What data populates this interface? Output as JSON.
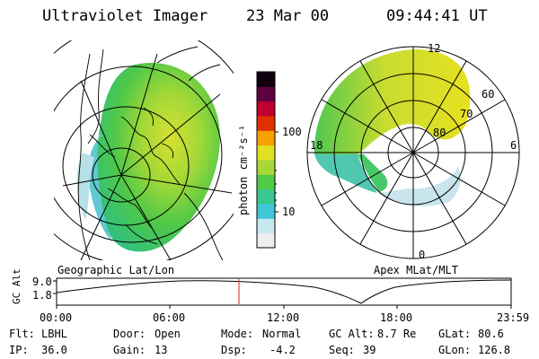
{
  "header": {
    "instrument": "Ultraviolet Imager",
    "date": "23 Mar 00",
    "time": "09:44:41 UT"
  },
  "colorbar": {
    "unit_text": "photon cm⁻²s⁻¹",
    "tick_labels": [
      "100",
      "10"
    ],
    "colors": [
      "#eeeeee",
      "#c8e8f0",
      "#40c8d8",
      "#38c890",
      "#50c848",
      "#a8d838",
      "#e0e020",
      "#f8a000",
      "#e03000",
      "#c00030",
      "#600040",
      "#100010"
    ]
  },
  "panels": {
    "geographic": {
      "label": "Geographic Lat/Lon"
    },
    "apex": {
      "label": "Apex MLat/MLT",
      "mlt_labels": [
        "12",
        "18",
        "6",
        "0"
      ],
      "mlat_labels": [
        "60",
        "70",
        "80"
      ]
    }
  },
  "timeline": {
    "ylabel": "GC Alt",
    "ytick_labels": [
      "9.0",
      "1.8"
    ],
    "xtick_labels": [
      "00:00",
      "06:00",
      "12:00",
      "18:00",
      "23:59"
    ]
  },
  "status": {
    "filter": {
      "label": "Flt:",
      "value": "LBHL"
    },
    "ip": {
      "label": "IP:",
      "value": "36.0"
    },
    "door": {
      "label": "Door:",
      "value": "Open"
    },
    "gain": {
      "label": "Gain:",
      "value": "13"
    },
    "mode": {
      "label": "Mode:",
      "value": "Normal"
    },
    "dsp": {
      "label": "Dsp:",
      "value": "-4.2"
    },
    "gc_alt": {
      "label": "GC Alt:",
      "value": "8.7 Re"
    },
    "seq": {
      "label": "Seq:",
      "value": "39"
    },
    "glat": {
      "label": "GLat:",
      "value": "80.6"
    },
    "glon": {
      "label": "GLon:",
      "value": "126.8"
    }
  },
  "colors": {
    "orbit_marker": "#e02020",
    "aurora_green": "#48c840",
    "aurora_yellow": "#d8e020",
    "aurora_cyan": "#60d0e0"
  }
}
